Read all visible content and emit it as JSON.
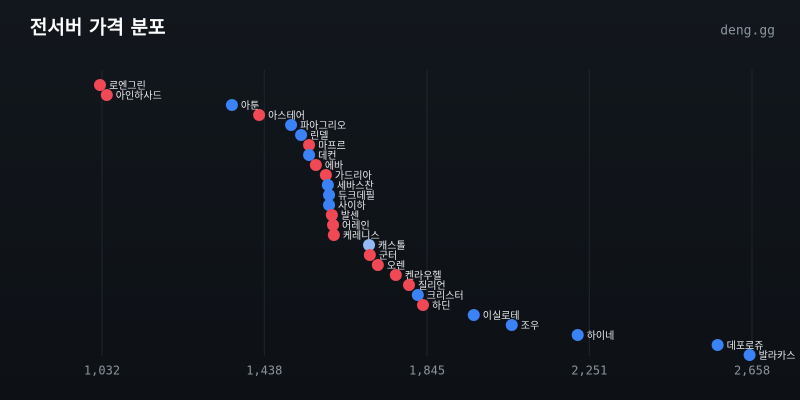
{
  "chart_data": {
    "type": "scatter",
    "title": "전서버 가격 분포",
    "brand": "deng.gg",
    "labels": [
      "로엔그린",
      "아인하사드",
      "아툰",
      "아스테어",
      "파아그리오",
      "린델",
      "마프르",
      "데컨",
      "에바",
      "가드리아",
      "세바스찬",
      "듀크데필",
      "사이하",
      "발센",
      "어레인",
      "케레니스",
      "캐스톨",
      "군터",
      "오렌",
      "켄라우헬",
      "질리언",
      "크리스터",
      "하딘",
      "이실로테",
      "조우",
      "하이네",
      "데포로쥬",
      "발라카스"
    ],
    "x": [
      1027,
      1044,
      1357,
      1425,
      1505,
      1530,
      1550,
      1550,
      1567,
      1592,
      1597,
      1600,
      1600,
      1607,
      1610,
      1612,
      1700,
      1702,
      1722,
      1767,
      1800,
      1822,
      1835,
      1962,
      2057,
      2222,
      2572,
      2652
    ],
    "colors": [
      "#f04955",
      "#f04955",
      "#3b82f6",
      "#f04955",
      "#3b82f6",
      "#3b82f6",
      "#f04955",
      "#3b82f6",
      "#f04955",
      "#f04955",
      "#3b82f6",
      "#3b82f6",
      "#3b82f6",
      "#f04955",
      "#f04955",
      "#f04955",
      "#93b8f5",
      "#f04955",
      "#f04955",
      "#f04955",
      "#f04955",
      "#3b82f6",
      "#f04955",
      "#3b82f6",
      "#3b82f6",
      "#3b82f6",
      "#3b82f6",
      "#3b82f6"
    ],
    "xlim": [
      1000,
      2700
    ],
    "xticks": [
      {
        "value": 1032,
        "label": "1,032"
      },
      {
        "value": 1438,
        "label": "1,438"
      },
      {
        "value": 1845,
        "label": "1,845"
      },
      {
        "value": 2251,
        "label": "2,251"
      },
      {
        "value": 2658,
        "label": "2,658"
      }
    ],
    "grid": true
  }
}
